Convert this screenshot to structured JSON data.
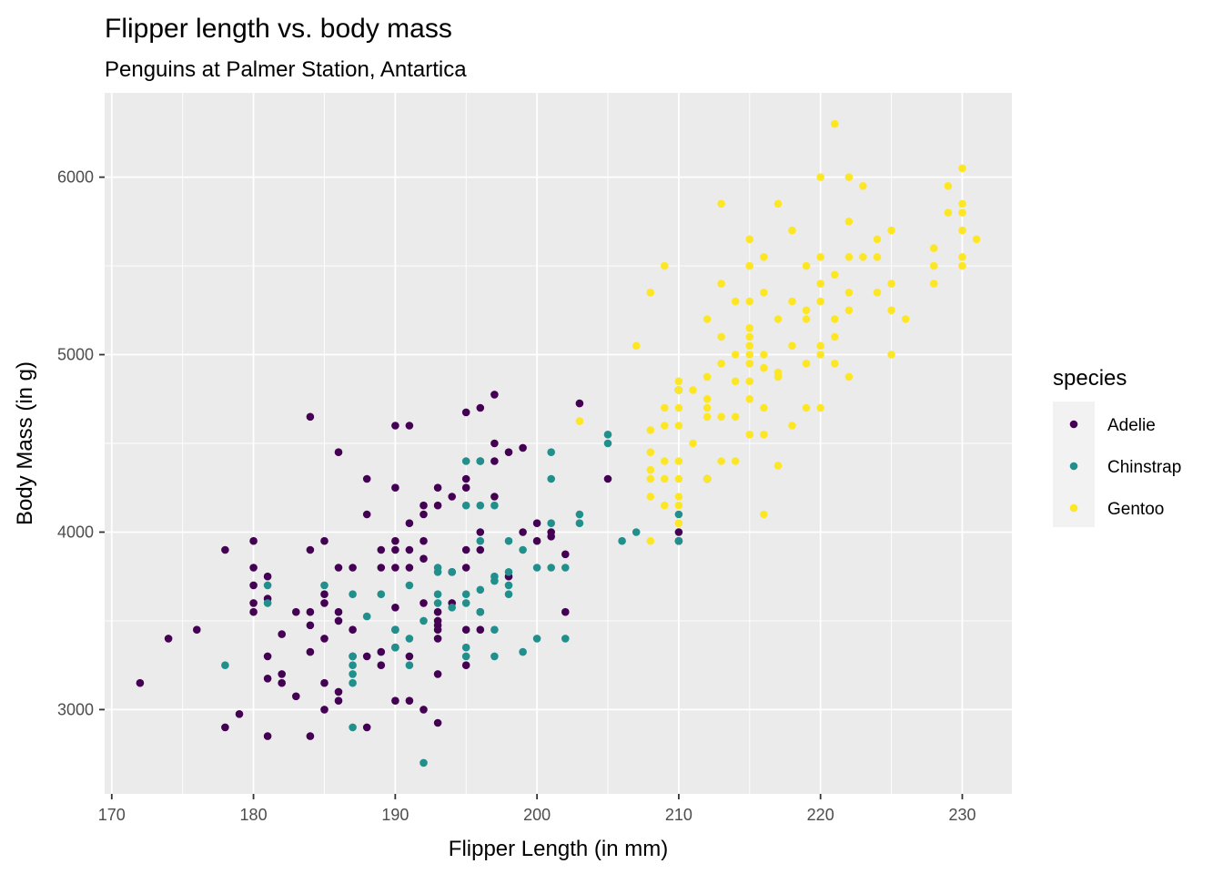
{
  "chart_data": {
    "type": "scatter",
    "title": "Flipper length vs. body mass",
    "subtitle": "Penguins at Palmer Station, Antartica",
    "xlabel": "Flipper Length (in mm)",
    "ylabel": "Body Mass (in g)",
    "xlim": [
      169.5,
      233.5
    ],
    "ylim": [
      2525,
      6475
    ],
    "x_ticks": [
      170,
      180,
      190,
      200,
      210,
      220,
      230
    ],
    "y_ticks": [
      3000,
      4000,
      5000,
      6000
    ],
    "grid": true,
    "background": "#ebebeb",
    "legend": {
      "title": "species",
      "placement": "right"
    },
    "series": [
      {
        "name": "Adelie",
        "color": "#440154",
        "points": [
          [
            172,
            3150
          ],
          [
            174,
            3400
          ],
          [
            176,
            3450
          ],
          [
            178,
            3900
          ],
          [
            178,
            2900
          ],
          [
            179,
            2975
          ],
          [
            180,
            3950
          ],
          [
            180,
            3800
          ],
          [
            180,
            3700
          ],
          [
            180,
            3600
          ],
          [
            180,
            3550
          ],
          [
            181,
            3750
          ],
          [
            181,
            3625
          ],
          [
            181,
            3300
          ],
          [
            181,
            3175
          ],
          [
            181,
            2850
          ],
          [
            182,
            3425
          ],
          [
            182,
            3200
          ],
          [
            182,
            3150
          ],
          [
            183,
            3550
          ],
          [
            183,
            3075
          ],
          [
            184,
            4650
          ],
          [
            184,
            3900
          ],
          [
            184,
            3550
          ],
          [
            184,
            3475
          ],
          [
            184,
            3325
          ],
          [
            184,
            2850
          ],
          [
            185,
            3950
          ],
          [
            185,
            3650
          ],
          [
            185,
            3600
          ],
          [
            185,
            3400
          ],
          [
            185,
            3150
          ],
          [
            185,
            3000
          ],
          [
            186,
            4450
          ],
          [
            186,
            3800
          ],
          [
            186,
            3550
          ],
          [
            186,
            3500
          ],
          [
            186,
            3100
          ],
          [
            186,
            3050
          ],
          [
            187,
            3800
          ],
          [
            187,
            3450
          ],
          [
            187,
            3300
          ],
          [
            188,
            4300
          ],
          [
            188,
            4100
          ],
          [
            188,
            3300
          ],
          [
            188,
            2900
          ],
          [
            189,
            3900
          ],
          [
            189,
            3800
          ],
          [
            189,
            3325
          ],
          [
            189,
            3250
          ],
          [
            190,
            4600
          ],
          [
            190,
            4250
          ],
          [
            190,
            3950
          ],
          [
            190,
            3900
          ],
          [
            190,
            3800
          ],
          [
            190,
            3575
          ],
          [
            190,
            3450
          ],
          [
            190,
            3350
          ],
          [
            190,
            3050
          ],
          [
            191,
            4600
          ],
          [
            191,
            4050
          ],
          [
            191,
            3900
          ],
          [
            191,
            3800
          ],
          [
            191,
            3300
          ],
          [
            191,
            3050
          ],
          [
            192,
            4150
          ],
          [
            192,
            4100
          ],
          [
            192,
            3950
          ],
          [
            192,
            3850
          ],
          [
            192,
            3600
          ],
          [
            192,
            3000
          ],
          [
            193,
            4250
          ],
          [
            193,
            4150
          ],
          [
            193,
            3550
          ],
          [
            193,
            3500
          ],
          [
            193,
            3475
          ],
          [
            193,
            3450
          ],
          [
            193,
            3400
          ],
          [
            193,
            3200
          ],
          [
            193,
            2925
          ],
          [
            194,
            4200
          ],
          [
            194,
            3775
          ],
          [
            194,
            3600
          ],
          [
            195,
            4675
          ],
          [
            195,
            4300
          ],
          [
            195,
            4250
          ],
          [
            195,
            3900
          ],
          [
            195,
            3800
          ],
          [
            195,
            3450
          ],
          [
            195,
            3250
          ],
          [
            196,
            4700
          ],
          [
            196,
            4400
          ],
          [
            196,
            4000
          ],
          [
            196,
            3900
          ],
          [
            196,
            3550
          ],
          [
            196,
            3450
          ],
          [
            197,
            4775
          ],
          [
            197,
            4500
          ],
          [
            197,
            4400
          ],
          [
            197,
            4200
          ],
          [
            198,
            4450
          ],
          [
            198,
            3750
          ],
          [
            199,
            4475
          ],
          [
            199,
            4000
          ],
          [
            200,
            4050
          ],
          [
            200,
            3950
          ],
          [
            201,
            4000
          ],
          [
            201,
            3975
          ],
          [
            202,
            3875
          ],
          [
            202,
            3550
          ],
          [
            203,
            4725
          ],
          [
            205,
            4300
          ],
          [
            210,
            4000
          ],
          [
            210,
            3950
          ]
        ]
      },
      {
        "name": "Chinstrap",
        "color": "#21908c",
        "points": [
          [
            178,
            3250
          ],
          [
            181,
            3700
          ],
          [
            181,
            3600
          ],
          [
            185,
            3700
          ],
          [
            187,
            3650
          ],
          [
            187,
            3300
          ],
          [
            187,
            3250
          ],
          [
            187,
            3200
          ],
          [
            187,
            3150
          ],
          [
            187,
            2900
          ],
          [
            188,
            3525
          ],
          [
            189,
            3650
          ],
          [
            190,
            3450
          ],
          [
            190,
            3350
          ],
          [
            191,
            3700
          ],
          [
            191,
            3400
          ],
          [
            191,
            3250
          ],
          [
            192,
            3500
          ],
          [
            192,
            2700
          ],
          [
            193,
            3800
          ],
          [
            193,
            3775
          ],
          [
            193,
            3650
          ],
          [
            193,
            3600
          ],
          [
            194,
            3775
          ],
          [
            194,
            3575
          ],
          [
            195,
            4400
          ],
          [
            195,
            4150
          ],
          [
            195,
            3650
          ],
          [
            195,
            3600
          ],
          [
            195,
            3350
          ],
          [
            195,
            3300
          ],
          [
            196,
            4400
          ],
          [
            196,
            4150
          ],
          [
            196,
            3950
          ],
          [
            196,
            3675
          ],
          [
            196,
            3550
          ],
          [
            197,
            4150
          ],
          [
            197,
            3750
          ],
          [
            197,
            3725
          ],
          [
            197,
            3450
          ],
          [
            197,
            3300
          ],
          [
            198,
            3950
          ],
          [
            198,
            3775
          ],
          [
            198,
            3700
          ],
          [
            198,
            3650
          ],
          [
            199,
            3900
          ],
          [
            199,
            3325
          ],
          [
            200,
            3800
          ],
          [
            200,
            3400
          ],
          [
            201,
            4450
          ],
          [
            201,
            4300
          ],
          [
            201,
            4050
          ],
          [
            201,
            3800
          ],
          [
            202,
            3800
          ],
          [
            202,
            3400
          ],
          [
            203,
            4100
          ],
          [
            203,
            4050
          ],
          [
            205,
            4550
          ],
          [
            205,
            4500
          ],
          [
            206,
            3950
          ],
          [
            207,
            4000
          ],
          [
            210,
            4800
          ],
          [
            210,
            4100
          ],
          [
            210,
            3950
          ],
          [
            212,
            4300
          ]
        ]
      },
      {
        "name": "Gentoo",
        "color": "#fde725",
        "points": [
          [
            203,
            4625
          ],
          [
            207,
            5050
          ],
          [
            208,
            5350
          ],
          [
            208,
            4575
          ],
          [
            208,
            4450
          ],
          [
            208,
            4350
          ],
          [
            208,
            4300
          ],
          [
            208,
            4200
          ],
          [
            208,
            3950
          ],
          [
            209,
            5500
          ],
          [
            209,
            4700
          ],
          [
            209,
            4600
          ],
          [
            209,
            4400
          ],
          [
            209,
            4300
          ],
          [
            209,
            4150
          ],
          [
            210,
            4850
          ],
          [
            210,
            4800
          ],
          [
            210,
            4700
          ],
          [
            210,
            4600
          ],
          [
            210,
            4400
          ],
          [
            210,
            4300
          ],
          [
            210,
            4200
          ],
          [
            210,
            4150
          ],
          [
            210,
            4050
          ],
          [
            211,
            4800
          ],
          [
            211,
            4500
          ],
          [
            212,
            5200
          ],
          [
            212,
            4875
          ],
          [
            212,
            4750
          ],
          [
            212,
            4700
          ],
          [
            212,
            4650
          ],
          [
            212,
            4300
          ],
          [
            213,
            5850
          ],
          [
            213,
            5400
          ],
          [
            213,
            5100
          ],
          [
            213,
            4950
          ],
          [
            213,
            4650
          ],
          [
            213,
            4400
          ],
          [
            214,
            5300
          ],
          [
            214,
            5000
          ],
          [
            214,
            4850
          ],
          [
            214,
            4650
          ],
          [
            214,
            4400
          ],
          [
            215,
            5650
          ],
          [
            215,
            5500
          ],
          [
            215,
            5300
          ],
          [
            215,
            5150
          ],
          [
            215,
            5100
          ],
          [
            215,
            5050
          ],
          [
            215,
            5000
          ],
          [
            215,
            4950
          ],
          [
            215,
            4850
          ],
          [
            215,
            4750
          ],
          [
            215,
            4550
          ],
          [
            216,
            5550
          ],
          [
            216,
            5350
          ],
          [
            216,
            5000
          ],
          [
            216,
            4925
          ],
          [
            216,
            4700
          ],
          [
            216,
            4550
          ],
          [
            216,
            4100
          ],
          [
            217,
            5850
          ],
          [
            217,
            5200
          ],
          [
            217,
            4900
          ],
          [
            217,
            4875
          ],
          [
            217,
            4375
          ],
          [
            218,
            5700
          ],
          [
            218,
            5300
          ],
          [
            218,
            5050
          ],
          [
            218,
            4600
          ],
          [
            219,
            5500
          ],
          [
            219,
            5250
          ],
          [
            219,
            5200
          ],
          [
            219,
            4950
          ],
          [
            219,
            4700
          ],
          [
            220,
            6000
          ],
          [
            220,
            5550
          ],
          [
            220,
            5400
          ],
          [
            220,
            5300
          ],
          [
            220,
            5050
          ],
          [
            220,
            5000
          ],
          [
            220,
            4700
          ],
          [
            221,
            6300
          ],
          [
            221,
            5450
          ],
          [
            221,
            5200
          ],
          [
            221,
            5100
          ],
          [
            221,
            4950
          ],
          [
            222,
            6000
          ],
          [
            222,
            5750
          ],
          [
            222,
            5550
          ],
          [
            222,
            5350
          ],
          [
            222,
            5250
          ],
          [
            222,
            4875
          ],
          [
            223,
            5950
          ],
          [
            223,
            5550
          ],
          [
            224,
            5650
          ],
          [
            224,
            5550
          ],
          [
            224,
            5350
          ],
          [
            225,
            5700
          ],
          [
            225,
            5400
          ],
          [
            225,
            5250
          ],
          [
            225,
            5000
          ],
          [
            226,
            5200
          ],
          [
            228,
            5600
          ],
          [
            228,
            5500
          ],
          [
            228,
            5400
          ],
          [
            229,
            5950
          ],
          [
            229,
            5800
          ],
          [
            230,
            6050
          ],
          [
            230,
            5850
          ],
          [
            230,
            5800
          ],
          [
            230,
            5700
          ],
          [
            230,
            5550
          ],
          [
            230,
            5500
          ],
          [
            231,
            5650
          ]
        ]
      }
    ]
  }
}
